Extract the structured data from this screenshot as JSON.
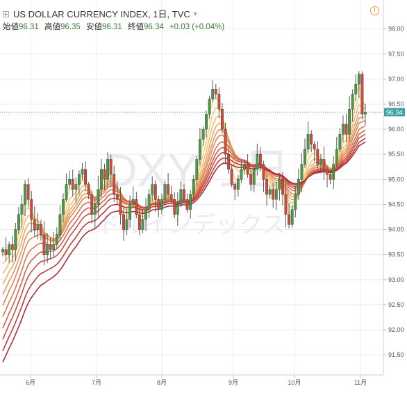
{
  "header": {
    "symbol_title": "US DOLLAR CURRENCY INDEX, 1日, TVC",
    "ohlc": [
      {
        "label": "始値",
        "value": "96.31"
      },
      {
        "label": "高値",
        "value": "96.35"
      },
      {
        "label": "安値",
        "value": "96.31"
      },
      {
        "label": "終値",
        "value": "96.34"
      }
    ],
    "change": "+0.03 (+0.04%)"
  },
  "watermark": {
    "symbol": "DXY, 1日",
    "name": "ドルインデックス"
  },
  "last_price_label": "96.34",
  "colors": {
    "up": "#4a9a4a",
    "down": "#d4493b",
    "grid": "#eeeeee",
    "last_price": "#3fa0a8",
    "ribbon": [
      "#f8e08a",
      "#f4cf79",
      "#f0bd6f",
      "#ebab67",
      "#e6985f",
      "#e08658",
      "#d97351",
      "#d1604a",
      "#c84d43",
      "#bc3b3c",
      "#ad2c34"
    ]
  },
  "chart_data": {
    "type": "candlestick",
    "y_axis_ticks": [
      "98.00",
      "97.50",
      "97.00",
      "96.50",
      "96.00",
      "95.50",
      "95.00",
      "94.50",
      "94.00",
      "93.50",
      "93.00",
      "92.50",
      "92.00",
      "91.50"
    ],
    "ylim": [
      91.1,
      98.3
    ],
    "x_axis_ticks": [
      "6月",
      "7月",
      "8月",
      "9月",
      "10月",
      "11月"
    ],
    "last_price": 96.34,
    "closes": [
      93.6,
      93.5,
      93.7,
      93.6,
      94.0,
      94.3,
      94.5,
      94.9,
      94.6,
      94.2,
      94.0,
      94.1,
      93.9,
      93.5,
      93.7,
      93.6,
      93.7,
      93.9,
      94.3,
      94.6,
      94.9,
      95.0,
      94.8,
      94.9,
      95.1,
      95.2,
      94.9,
      94.7,
      94.3,
      94.5,
      94.8,
      95.2,
      95.0,
      95.4,
      95.1,
      94.7,
      94.6,
      94.3,
      94.0,
      94.2,
      94.5,
      94.6,
      94.3,
      94.0,
      94.2,
      94.4,
      94.7,
      94.9,
      94.6,
      94.4,
      94.6,
      94.9,
      94.7,
      94.6,
      94.3,
      94.5,
      94.8,
      94.6,
      94.4,
      94.7,
      95.0,
      95.4,
      95.8,
      96.0,
      96.3,
      96.6,
      96.8,
      96.7,
      96.4,
      96.0,
      95.5,
      95.2,
      94.9,
      94.8,
      95.0,
      95.2,
      95.3,
      95.1,
      94.9,
      95.2,
      95.5,
      95.3,
      95.0,
      94.7,
      94.8,
      94.6,
      94.8,
      95.0,
      94.7,
      94.3,
      94.1,
      94.4,
      94.7,
      95.0,
      95.3,
      95.6,
      95.9,
      95.7,
      95.6,
      95.3,
      95.4,
      95.2,
      95.1,
      95.0,
      95.3,
      95.6,
      95.9,
      96.1,
      95.9,
      96.4,
      96.7,
      96.9,
      97.1,
      96.3,
      96.34
    ],
    "ribbon_lead": 93.4,
    "ribbon_lag": [
      92.4,
      92.1,
      91.8,
      91.55,
      91.35
    ]
  }
}
